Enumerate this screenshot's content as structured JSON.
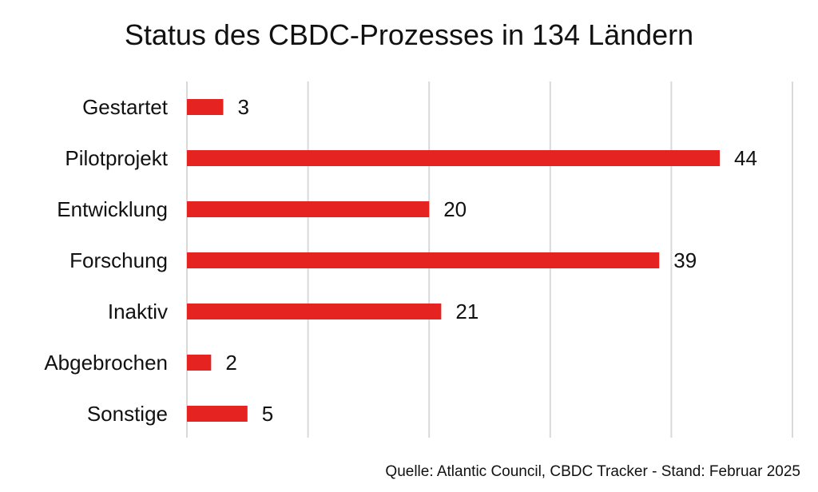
{
  "chart_data": {
    "type": "bar",
    "orientation": "horizontal",
    "title": "Status des CBDC-Prozesses in 134 Ländern",
    "categories": [
      "Gestartet",
      "Pilotprojekt",
      "Entwicklung",
      "Forschung",
      "Inaktiv",
      "Abgebrochen",
      "Sonstige"
    ],
    "values": [
      3,
      44,
      20,
      39,
      21,
      2,
      5
    ],
    "xlim": [
      0,
      50
    ],
    "grid_step": 10,
    "grid": true,
    "legend": "none",
    "bar_color": "#e52421",
    "source": "Quelle: Atlantic Council, CBDC Tracker - Stand: Februar 2025"
  }
}
